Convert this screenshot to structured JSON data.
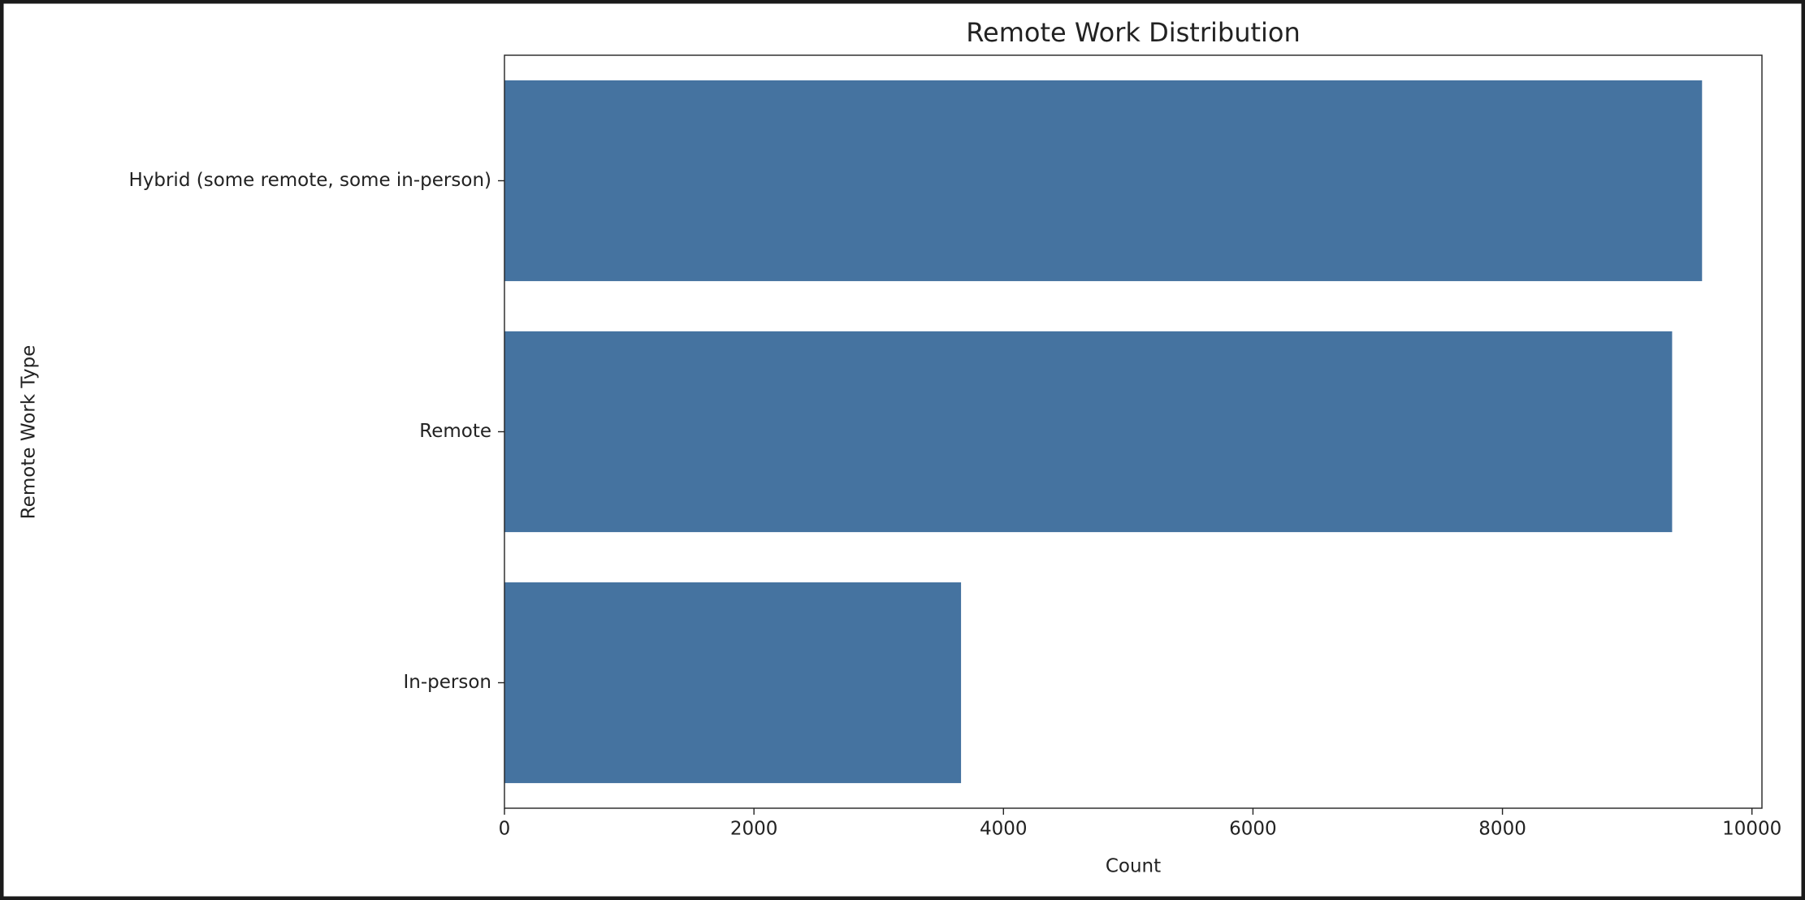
{
  "chart_data": {
    "type": "barh",
    "title": "Remote Work Distribution",
    "x_label": "Count",
    "y_label": "Remote Work Type",
    "categories": [
      "Hybrid (some remote, some in-person)",
      "Remote",
      "In-person"
    ],
    "values": [
      9600,
      9360,
      3660
    ],
    "color": "#4573a0",
    "xlim": [
      0,
      10080
    ],
    "xticks": [
      0,
      2000,
      4000,
      6000,
      8000,
      10000
    ],
    "grid": false
  }
}
